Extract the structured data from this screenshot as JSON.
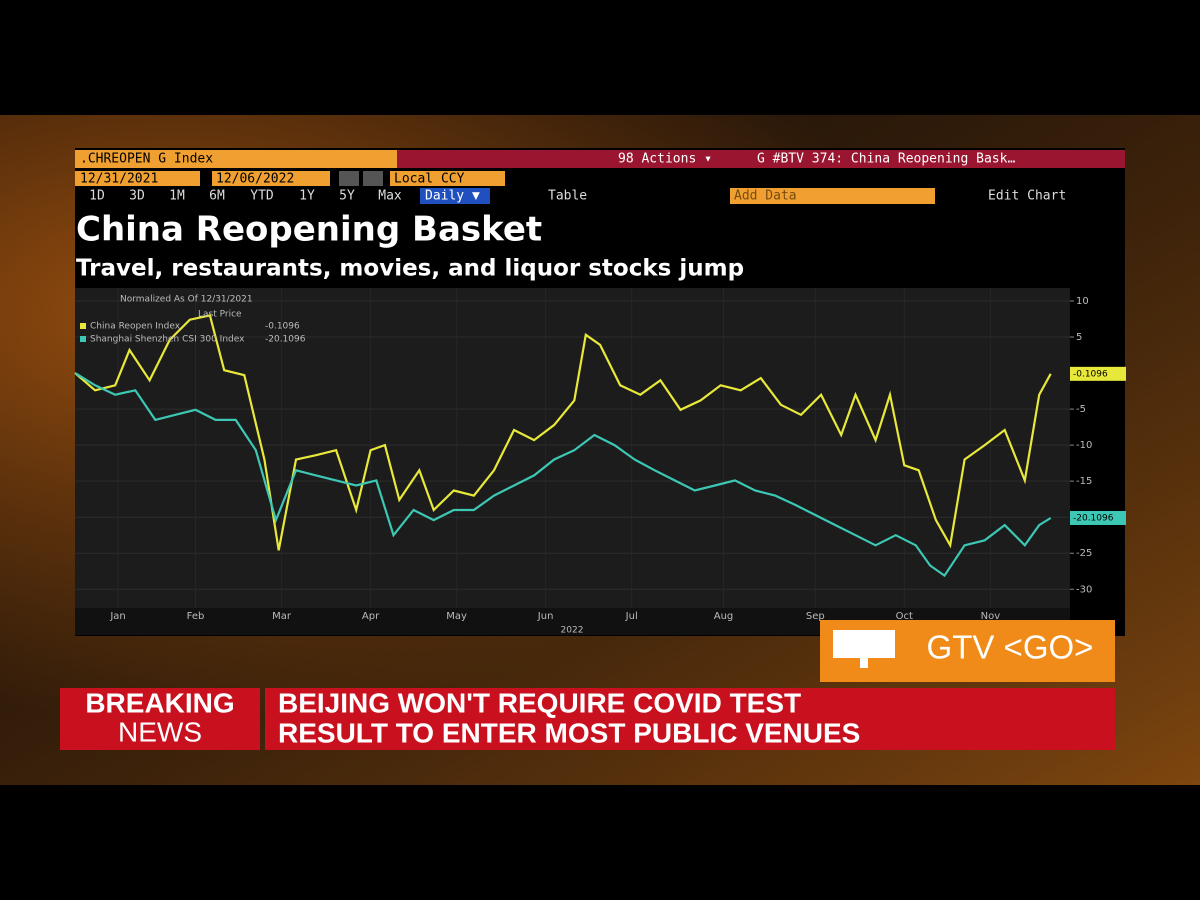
{
  "toolbar": {
    "ticker": ".CHREOPEN G Index",
    "actions": "98 Actions ▾",
    "page": "G #BTV 374: China Reopening Bask…",
    "start_date": "12/31/2021",
    "end_date": "12/06/2022",
    "currency": "Local CCY",
    "ranges": [
      "1D",
      "3D",
      "1M",
      "6M",
      "YTD",
      "1Y",
      "5Y",
      "Max"
    ],
    "frequency": "Daily ▼",
    "table": "Table",
    "add_data": "Add Data",
    "edit_chart": "Edit Chart"
  },
  "chart_data": {
    "type": "line",
    "title": "China Reopening Basket",
    "subtitle": "Travel, restaurants, movies, and liquor stocks jump",
    "note": "Normalized As Of 12/31/2021",
    "legend_header": "Last Price",
    "xlabel": "2022",
    "xlim": [
      0,
      345
    ],
    "xticks": [
      {
        "value": 15,
        "label": "Jan"
      },
      {
        "value": 42,
        "label": "Feb"
      },
      {
        "value": 72,
        "label": "Mar"
      },
      {
        "value": 103,
        "label": "Apr"
      },
      {
        "value": 133,
        "label": "May"
      },
      {
        "value": 164,
        "label": "Jun"
      },
      {
        "value": 194,
        "label": "Jul"
      },
      {
        "value": 226,
        "label": "Aug"
      },
      {
        "value": 258,
        "label": "Sep"
      },
      {
        "value": 289,
        "label": "Oct"
      },
      {
        "value": 319,
        "label": "Nov"
      }
    ],
    "ylim": [
      -32.6,
      11.8
    ],
    "yticks": [
      10,
      5,
      -5,
      -10,
      -15,
      -20,
      -25,
      -30
    ],
    "grid": true,
    "series": [
      {
        "name": "China Reopen Index",
        "color": "#e8e83a",
        "x": [
          0,
          7,
          14,
          19,
          26,
          33,
          40,
          47,
          52,
          59,
          66,
          71,
          77,
          84,
          91,
          98,
          103,
          108,
          113,
          120,
          125,
          132,
          139,
          146,
          153,
          160,
          167,
          174,
          178,
          183,
          190,
          197,
          204,
          211,
          218,
          225,
          232,
          239,
          246,
          253,
          260,
          267,
          272,
          279,
          284,
          289,
          294,
          300,
          305,
          310,
          317,
          324,
          331,
          336,
          340
        ],
        "values": [
          0,
          -2.4,
          -1.7,
          3.2,
          -1,
          4.6,
          7.4,
          8,
          0.4,
          -0.3,
          -12,
          -24.6,
          -12,
          -11.4,
          -10.7,
          -19,
          -10.7,
          -10,
          -17.6,
          -13.5,
          -19,
          -16.3,
          -17,
          -13.5,
          -7.9,
          -9.3,
          -7.2,
          -3.8,
          5.3,
          3.9,
          -1.7,
          -3,
          -1,
          -5.1,
          -3.8,
          -1.7,
          -2.4,
          -0.7,
          -4.4,
          -5.8,
          -3,
          -8.6,
          -3,
          -9.3,
          -3,
          -12.8,
          -13.5,
          -20.4,
          -23.9,
          -12,
          -10,
          -7.9,
          -14.9,
          -3,
          -0.1096
        ]
      },
      {
        "name": "Shanghai Shenzhen CSI 300 Index",
        "color": "#3cc8b4",
        "x": [
          0,
          7,
          14,
          21,
          28,
          35,
          42,
          49,
          56,
          63,
          70,
          77,
          84,
          91,
          98,
          105,
          111,
          118,
          125,
          132,
          139,
          146,
          153,
          160,
          167,
          174,
          181,
          188,
          195,
          202,
          209,
          216,
          223,
          230,
          237,
          244,
          251,
          258,
          265,
          272,
          279,
          286,
          293,
          298,
          303,
          310,
          317,
          324,
          331,
          336,
          340
        ],
        "values": [
          0,
          -1.7,
          -3,
          -2.4,
          -6.5,
          -5.8,
          -5.1,
          -6.5,
          -6.5,
          -10.7,
          -20.4,
          -13.5,
          -14.2,
          -14.9,
          -15.6,
          -14.9,
          -22.5,
          -19,
          -20.4,
          -19,
          -19,
          -17,
          -15.6,
          -14.2,
          -12,
          -10.7,
          -8.6,
          -10,
          -12,
          -13.5,
          -14.9,
          -16.3,
          -15.6,
          -14.9,
          -16.3,
          -17,
          -18.3,
          -19.7,
          -21.1,
          -22.5,
          -23.9,
          -22.5,
          -23.9,
          -26.7,
          -28.1,
          -23.9,
          -23.2,
          -21.1,
          -23.9,
          -21.1,
          -20.1096
        ]
      }
    ]
  },
  "gtv": "GTV <GO>",
  "banner": {
    "label": [
      "BREAKING",
      "NEWS"
    ],
    "headline": [
      "BEIJING WON'T REQUIRE COVID TEST",
      "RESULT TO ENTER MOST PUBLIC VENUES"
    ]
  }
}
